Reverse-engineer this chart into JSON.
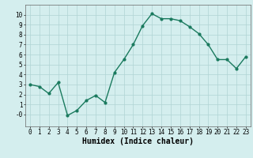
{
  "x": [
    0,
    1,
    2,
    3,
    4,
    5,
    6,
    7,
    8,
    9,
    10,
    11,
    12,
    13,
    14,
    15,
    16,
    17,
    18,
    19,
    20,
    21,
    22,
    23
  ],
  "y": [
    3.0,
    2.8,
    2.1,
    3.2,
    -0.1,
    0.4,
    1.4,
    1.9,
    1.2,
    4.2,
    5.5,
    7.0,
    8.9,
    10.1,
    9.6,
    9.6,
    9.4,
    8.8,
    8.1,
    7.0,
    5.5,
    5.5,
    4.6,
    5.8
  ],
  "line_color": "#1a7a5e",
  "marker": "o",
  "marker_size": 2.0,
  "linewidth": 1.0,
  "xlabel": "Humidex (Indice chaleur)",
  "xlim": [
    -0.5,
    23.5
  ],
  "ylim": [
    -1.2,
    11.0
  ],
  "yticks": [
    0,
    1,
    2,
    3,
    4,
    5,
    6,
    7,
    8,
    9,
    10
  ],
  "xticks": [
    0,
    1,
    2,
    3,
    4,
    5,
    6,
    7,
    8,
    9,
    10,
    11,
    12,
    13,
    14,
    15,
    16,
    17,
    18,
    19,
    20,
    21,
    22,
    23
  ],
  "background_color": "#d4eeee",
  "grid_color": "#b0d4d4",
  "tick_label_size": 5.5,
  "xlabel_size": 7.0
}
